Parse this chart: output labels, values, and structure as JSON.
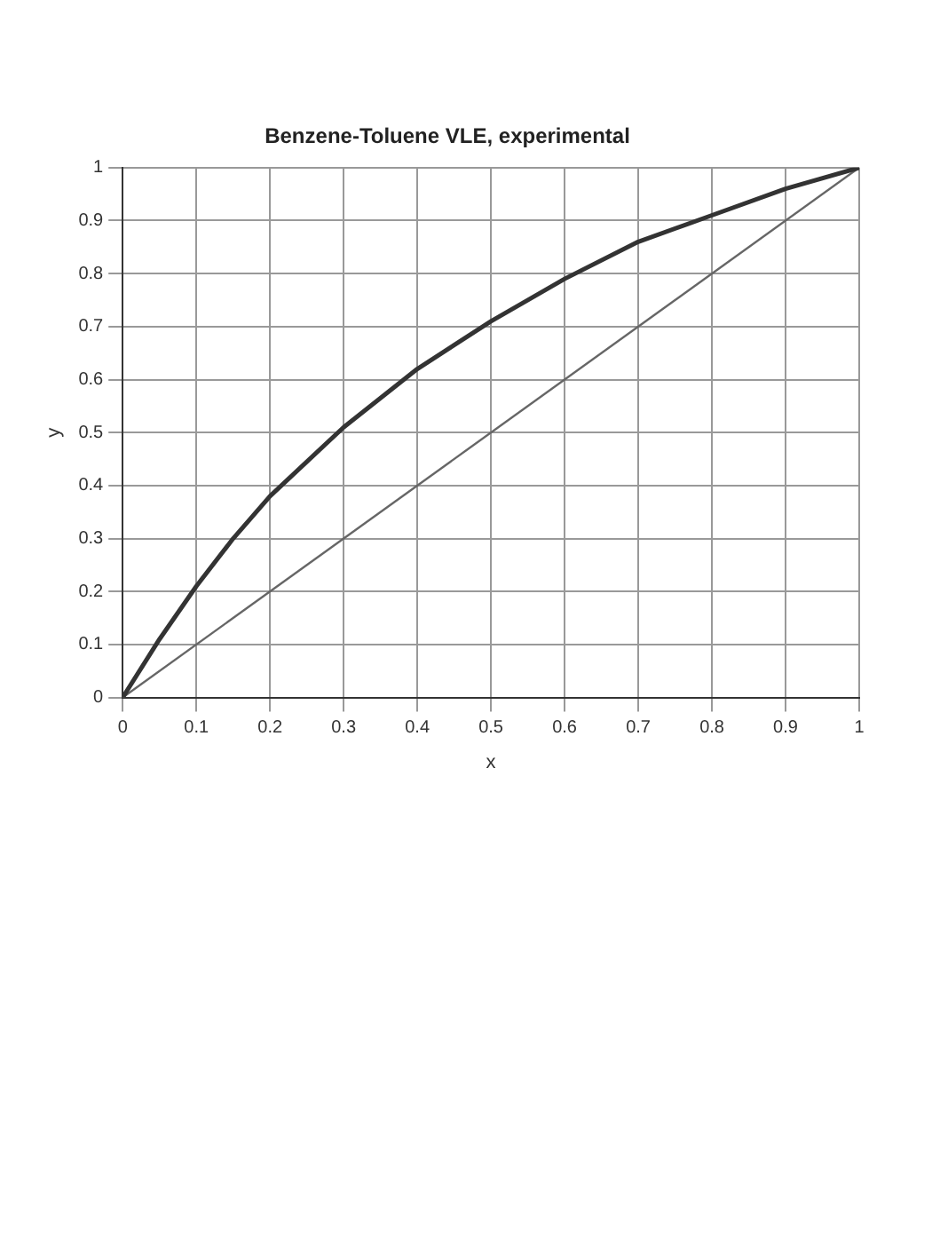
{
  "chart_data": {
    "type": "line",
    "title": "Benzene-Toluene VLE, experimental",
    "xlabel": "x",
    "ylabel": "y",
    "xlim": [
      0,
      1
    ],
    "ylim": [
      0,
      1
    ],
    "xticks": [
      0,
      0.1,
      0.2,
      0.3,
      0.4,
      0.5,
      0.6,
      0.7,
      0.8,
      0.9,
      1
    ],
    "yticks": [
      0,
      0.1,
      0.2,
      0.3,
      0.4,
      0.5,
      0.6,
      0.7,
      0.8,
      0.9,
      1
    ],
    "grid": true,
    "legend": false,
    "marker": "none",
    "line_style": "solid",
    "series": [
      {
        "color": "#333333",
        "x": [
          0,
          0.05,
          0.1,
          0.15,
          0.2,
          0.3,
          0.4,
          0.5,
          0.6,
          0.7,
          0.8,
          0.9,
          1
        ],
        "values": [
          0,
          0.11,
          0.21,
          0.3,
          0.38,
          0.51,
          0.62,
          0.71,
          0.79,
          0.86,
          0.91,
          0.96,
          1
        ]
      },
      {
        "color": "#666666",
        "x": [
          0,
          1
        ],
        "values": [
          0,
          1
        ]
      }
    ]
  }
}
